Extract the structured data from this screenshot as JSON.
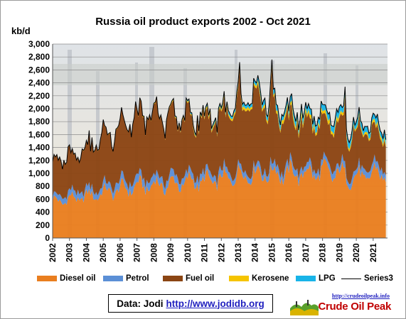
{
  "chart_data": {
    "type": "area",
    "title": "Russia oil product exports 2002 - Oct 2021",
    "ylabel": "kb/d",
    "ylim": [
      0,
      3000
    ],
    "yticks": [
      "0",
      "200",
      "400",
      "600",
      "800",
      "1,000",
      "1,200",
      "1,400",
      "1,600",
      "1,800",
      "2,000",
      "2,200",
      "2,400",
      "2,600",
      "2,800",
      "3,000"
    ],
    "xticks": [
      "2002",
      "2003",
      "2004",
      "2005",
      "2006",
      "2007",
      "2008",
      "2009",
      "2010",
      "2011",
      "2012",
      "2013",
      "2014",
      "2015",
      "2016",
      "2017",
      "2018",
      "2019",
      "2020",
      "2021"
    ],
    "grid": true,
    "legend_position": "bottom",
    "stacked": true,
    "x_annual": [
      2002,
      2003,
      2004,
      2005,
      2006,
      2007,
      2008,
      2009,
      2010,
      2011,
      2012,
      2013,
      2014,
      2015,
      2016,
      2017,
      2018,
      2019,
      2020,
      2021
    ],
    "series": [
      {
        "name": "Diesel oil",
        "color": "#e97e1f",
        "annual": [
          560,
          600,
          640,
          700,
          750,
          800,
          820,
          830,
          870,
          880,
          900,
          980,
          1000,
          1000,
          1000,
          1000,
          1020,
          1000,
          920,
          1000
        ]
      },
      {
        "name": "Petrol",
        "color": "#5b8fd6",
        "annual": [
          80,
          90,
          100,
          100,
          110,
          110,
          110,
          110,
          100,
          100,
          100,
          90,
          90,
          100,
          100,
          90,
          90,
          100,
          90,
          100
        ]
      },
      {
        "name": "Fuel oil",
        "color": "#8b4513",
        "annual": [
          520,
          580,
          640,
          760,
          860,
          920,
          960,
          920,
          880,
          820,
          860,
          930,
          1050,
          900,
          720,
          720,
          620,
          650,
          620,
          500
        ]
      },
      {
        "name": "Kerosene",
        "color": "#f5c400",
        "annual": [
          10,
          10,
          10,
          10,
          10,
          15,
          15,
          15,
          20,
          30,
          30,
          40,
          40,
          40,
          50,
          50,
          50,
          50,
          30,
          40
        ]
      },
      {
        "name": "LPG",
        "color": "#18b4e8",
        "annual": [
          0,
          0,
          0,
          0,
          0,
          0,
          0,
          10,
          20,
          30,
          40,
          50,
          60,
          80,
          90,
          90,
          100,
          100,
          90,
          90
        ]
      },
      {
        "name": "Series3",
        "color": "#000000",
        "note": "total line"
      }
    ],
    "total_peaks": [
      {
        "x": 2013.1,
        "y": 2720
      },
      {
        "x": 2015.0,
        "y": 2760
      },
      {
        "x": 2019.3,
        "y": 2340
      }
    ]
  },
  "source": {
    "label": "Data: Jodi",
    "link": "http://www.jodidb.org"
  },
  "logo": {
    "url": "http://crudeoilpeak.info",
    "name": "Crude Oil Peak"
  }
}
